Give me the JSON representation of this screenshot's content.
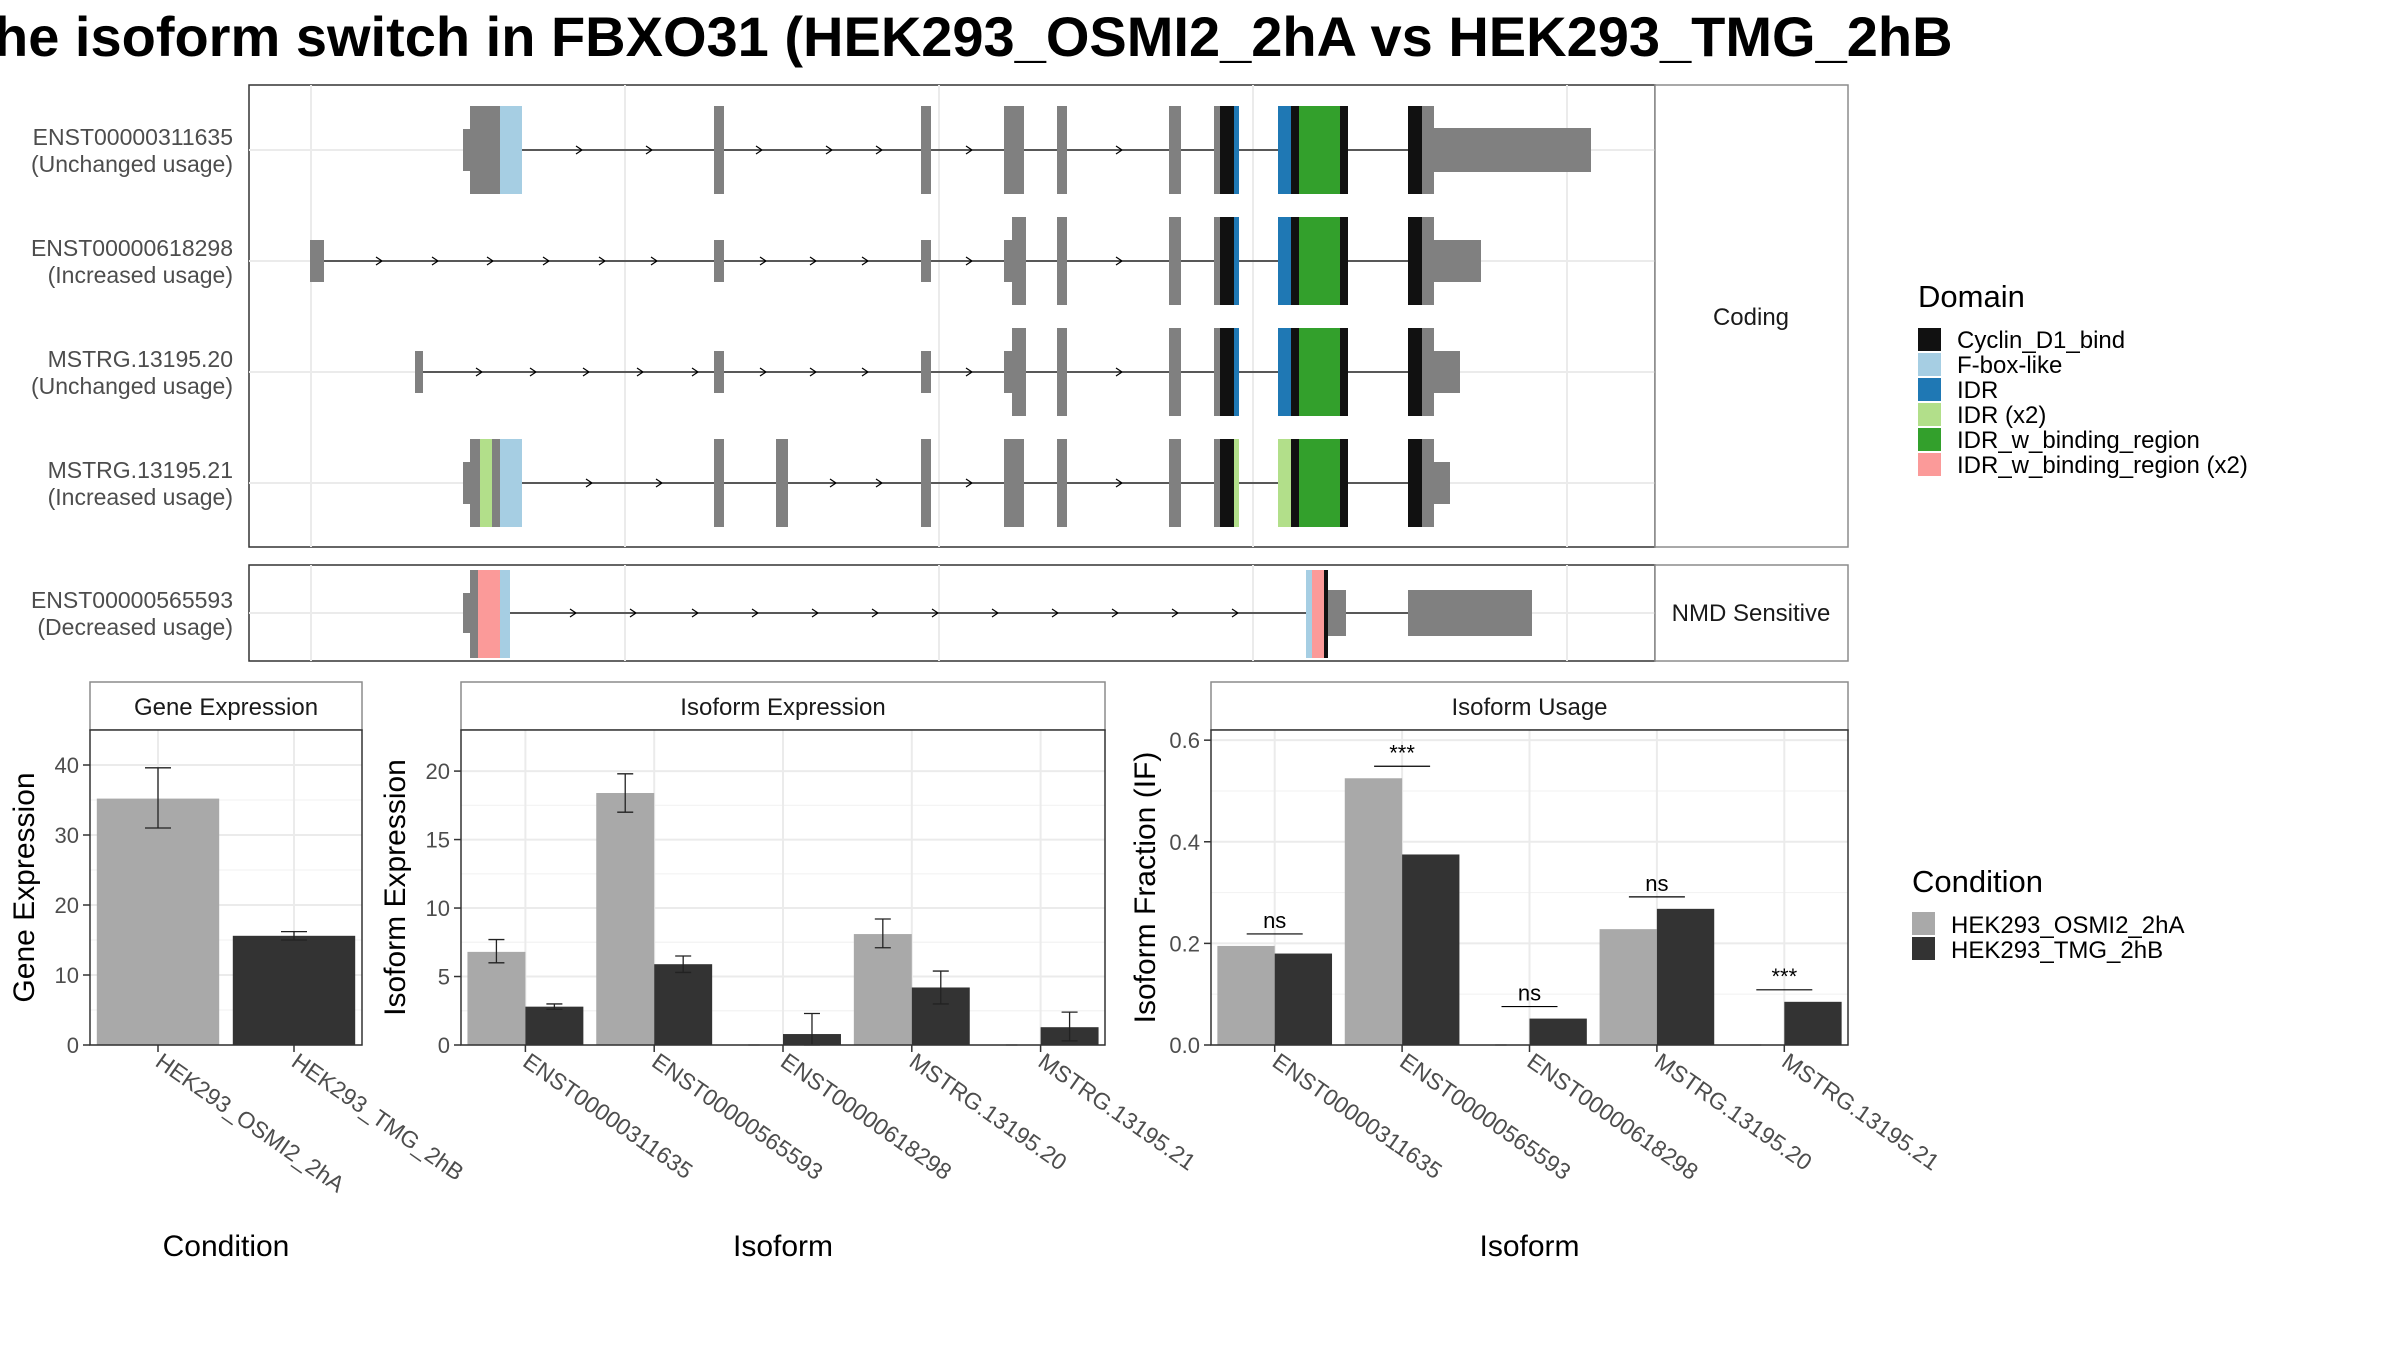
{
  "title": "he isoform switch in FBXO31 (HEK293_OSMI2_2hA vs HEK293_TMG_2hB",
  "colors": {
    "exon": "#808080",
    "intron": "#000000",
    "condition_a": "#a9a9a9",
    "condition_b": "#333333",
    "grid": "#ebebeb",
    "panel_border": "#333333",
    "strip_border": "#8c8c8c"
  },
  "transcript_panel": {
    "coding_label": "Coding",
    "nmd_label": "NMD Sensitive",
    "domain_legend": {
      "title": "Domain",
      "items": [
        {
          "label": "Cyclin_D1_bind",
          "color": "#111111"
        },
        {
          "label": "F-box-like",
          "color": "#a6cee3"
        },
        {
          "label": "IDR",
          "color": "#1f78b4"
        },
        {
          "label": "IDR (x2)",
          "color": "#b2df8a"
        },
        {
          "label": "IDR_w_binding_region",
          "color": "#33a02c"
        },
        {
          "label": "IDR_w_binding_region (x2)",
          "color": "#fb9a99"
        }
      ]
    },
    "transcripts": [
      {
        "id": "ENST00000311635",
        "usage": "(Unchanged usage)",
        "group": "coding"
      },
      {
        "id": "ENST00000618298",
        "usage": "(Increased usage)",
        "group": "coding"
      },
      {
        "id": "MSTRG.13195.20",
        "usage": "(Unchanged usage)",
        "group": "coding"
      },
      {
        "id": "MSTRG.13195.21",
        "usage": "(Increased usage)",
        "group": "coding"
      },
      {
        "id": "ENST00000565593",
        "usage": "(Decreased usage)",
        "group": "nmd"
      }
    ]
  },
  "condition_legend": {
    "title": "Condition",
    "items": [
      "HEK293_OSMI2_2hA",
      "HEK293_TMG_2hB"
    ]
  },
  "chart_data": [
    {
      "type": "bar",
      "title": "Gene Expression",
      "xlabel": "Condition",
      "ylabel": "Gene Expression",
      "ylim": [
        0,
        45
      ],
      "yticks": [
        0,
        10,
        20,
        30,
        40
      ],
      "categories": [
        "HEK293_OSMI2_2hA",
        "HEK293_TMG_2hB"
      ],
      "values": [
        35.2,
        15.6
      ],
      "errors": [
        [
          31.0,
          39.6
        ],
        [
          15.0,
          16.2
        ]
      ]
    },
    {
      "type": "bar",
      "title": "Isoform Expression",
      "xlabel": "Isoform",
      "ylabel": "Isoform Expression",
      "ylim": [
        0,
        23
      ],
      "yticks": [
        0,
        5,
        10,
        15,
        20
      ],
      "categories": [
        "ENST00000311635",
        "ENST00000565593",
        "ENST00000618298",
        "MSTRG.13195.20",
        "MSTRG.13195.21"
      ],
      "series": [
        {
          "name": "HEK293_OSMI2_2hA",
          "values": [
            6.8,
            18.4,
            0.0,
            8.1,
            0.0
          ],
          "errors": [
            [
              6.0,
              7.7
            ],
            [
              17.0,
              19.8
            ],
            [
              0.0,
              0.0
            ],
            [
              7.1,
              9.2
            ],
            [
              0.0,
              0.0
            ]
          ]
        },
        {
          "name": "HEK293_TMG_2hB",
          "values": [
            2.8,
            5.9,
            0.8,
            4.2,
            1.3
          ],
          "errors": [
            [
              2.6,
              3.0
            ],
            [
              5.3,
              6.5
            ],
            [
              0.0,
              2.3
            ],
            [
              3.0,
              5.4
            ],
            [
              0.3,
              2.4
            ]
          ]
        }
      ]
    },
    {
      "type": "bar",
      "title": "Isoform Usage",
      "xlabel": "Isoform",
      "ylabel": "Isoform Fraction (IF)",
      "ylim": [
        0,
        0.62
      ],
      "yticks": [
        "0.0",
        "0.2",
        "0.4",
        "0.6"
      ],
      "categories": [
        "ENST00000311635",
        "ENST00000565593",
        "ENST00000618298",
        "MSTRG.13195.20",
        "MSTRG.13195.21"
      ],
      "series": [
        {
          "name": "HEK293_OSMI2_2hA",
          "values": [
            0.195,
            0.525,
            0.0,
            0.228,
            0.0
          ]
        },
        {
          "name": "HEK293_TMG_2hB",
          "values": [
            0.18,
            0.375,
            0.052,
            0.268,
            0.085
          ]
        }
      ],
      "significance": [
        "ns",
        "***",
        "ns",
        "ns",
        "***"
      ]
    }
  ]
}
